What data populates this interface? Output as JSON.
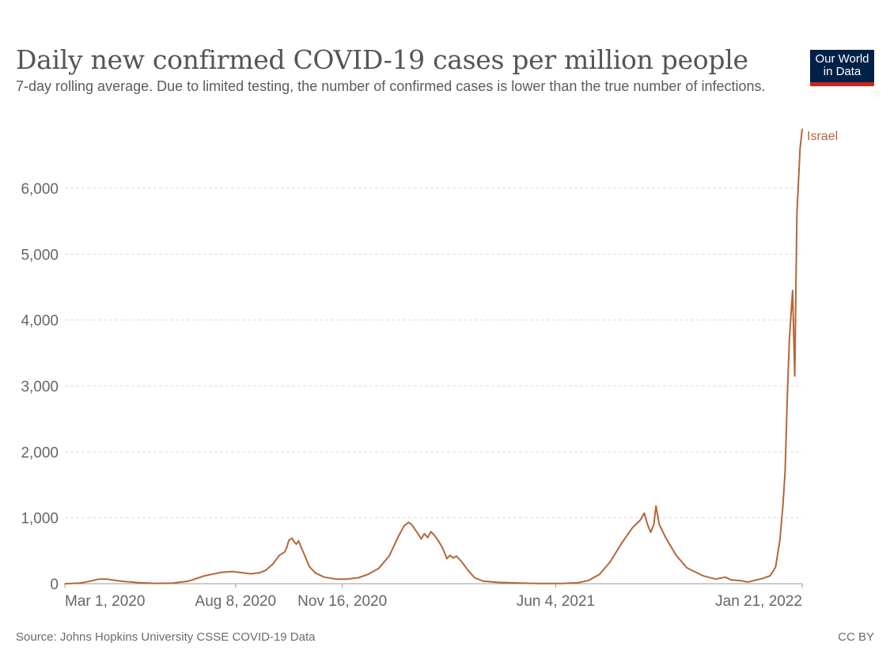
{
  "header": {
    "title": "Daily new confirmed COVID-19 cases per million people",
    "subtitle": "7-day rolling average. Due to limited testing, the number of confirmed cases is lower than the true number of infections.",
    "logo_line1": "Our World",
    "logo_line2": "in Data"
  },
  "footer": {
    "source": "Source: Johns Hopkins University CSSE COVID-19 Data",
    "license": "CC BY"
  },
  "colors": {
    "series": "#b5663a",
    "grid": "#dddddd",
    "axis_text": "#666666"
  },
  "chart_data": {
    "type": "line",
    "title": "Daily new confirmed COVID-19 cases per million people",
    "subtitle": "7-day rolling average. Due to limited testing, the number of confirmed cases is lower than the true number of infections.",
    "xlabel": "",
    "ylabel": "",
    "x_ticks": [
      "2020-03-01",
      "2020-08-08",
      "2020-11-16",
      "2021-06-04",
      "2022-01-21"
    ],
    "x_tick_labels": [
      "Mar 1, 2020",
      "Aug 8, 2020",
      "Nov 16, 2020",
      "Jun 4, 2021",
      "Jan 21, 2022"
    ],
    "xlim": [
      "2020-03-01",
      "2022-01-21"
    ],
    "y_ticks": [
      0,
      1000,
      2000,
      3000,
      4000,
      5000,
      6000
    ],
    "y_tick_labels": [
      "0",
      "1,000",
      "2,000",
      "3,000",
      "4,000",
      "5,000",
      "6,000"
    ],
    "ylim": [
      0,
      6900
    ],
    "grid": "horizontal dashed",
    "legend": "line-end label",
    "series": [
      {
        "name": "Israel",
        "color": "#b5663a",
        "points": [
          [
            "2020-03-01",
            0
          ],
          [
            "2020-03-15",
            8
          ],
          [
            "2020-03-25",
            40
          ],
          [
            "2020-04-02",
            70
          ],
          [
            "2020-04-10",
            68
          ],
          [
            "2020-04-15",
            55
          ],
          [
            "2020-04-25",
            35
          ],
          [
            "2020-05-10",
            15
          ],
          [
            "2020-05-25",
            5
          ],
          [
            "2020-06-10",
            10
          ],
          [
            "2020-06-25",
            40
          ],
          [
            "2020-07-10",
            120
          ],
          [
            "2020-07-25",
            170
          ],
          [
            "2020-08-05",
            185
          ],
          [
            "2020-08-15",
            165
          ],
          [
            "2020-08-22",
            150
          ],
          [
            "2020-08-30",
            165
          ],
          [
            "2020-09-05",
            200
          ],
          [
            "2020-09-12",
            300
          ],
          [
            "2020-09-18",
            430
          ],
          [
            "2020-09-23",
            480
          ],
          [
            "2020-09-25",
            550
          ],
          [
            "2020-09-27",
            660
          ],
          [
            "2020-09-30",
            690
          ],
          [
            "2020-10-02",
            630
          ],
          [
            "2020-10-04",
            600
          ],
          [
            "2020-10-06",
            650
          ],
          [
            "2020-10-08",
            570
          ],
          [
            "2020-10-12",
            420
          ],
          [
            "2020-10-16",
            260
          ],
          [
            "2020-10-22",
            160
          ],
          [
            "2020-10-30",
            100
          ],
          [
            "2020-11-10",
            70
          ],
          [
            "2020-11-20",
            70
          ],
          [
            "2020-12-01",
            90
          ],
          [
            "2020-12-10",
            140
          ],
          [
            "2020-12-20",
            230
          ],
          [
            "2020-12-30",
            420
          ],
          [
            "2021-01-07",
            700
          ],
          [
            "2021-01-13",
            880
          ],
          [
            "2021-01-17",
            930
          ],
          [
            "2021-01-20",
            900
          ],
          [
            "2021-01-25",
            780
          ],
          [
            "2021-01-29",
            680
          ],
          [
            "2021-02-01",
            760
          ],
          [
            "2021-02-04",
            700
          ],
          [
            "2021-02-07",
            790
          ],
          [
            "2021-02-10",
            740
          ],
          [
            "2021-02-14",
            650
          ],
          [
            "2021-02-18",
            540
          ],
          [
            "2021-02-22",
            380
          ],
          [
            "2021-02-25",
            430
          ],
          [
            "2021-02-28",
            390
          ],
          [
            "2021-03-03",
            420
          ],
          [
            "2021-03-08",
            330
          ],
          [
            "2021-03-14",
            200
          ],
          [
            "2021-03-20",
            90
          ],
          [
            "2021-03-28",
            40
          ],
          [
            "2021-04-10",
            20
          ],
          [
            "2021-05-01",
            8
          ],
          [
            "2021-05-20",
            3
          ],
          [
            "2021-06-10",
            3
          ],
          [
            "2021-06-25",
            15
          ],
          [
            "2021-07-05",
            50
          ],
          [
            "2021-07-15",
            140
          ],
          [
            "2021-07-25",
            330
          ],
          [
            "2021-08-05",
            620
          ],
          [
            "2021-08-15",
            850
          ],
          [
            "2021-08-22",
            960
          ],
          [
            "2021-08-26",
            1070
          ],
          [
            "2021-08-29",
            900
          ],
          [
            "2021-09-01",
            780
          ],
          [
            "2021-09-04",
            900
          ],
          [
            "2021-09-06",
            1180
          ],
          [
            "2021-09-09",
            900
          ],
          [
            "2021-09-15",
            700
          ],
          [
            "2021-09-25",
            430
          ],
          [
            "2021-10-05",
            240
          ],
          [
            "2021-10-20",
            120
          ],
          [
            "2021-11-01",
            70
          ],
          [
            "2021-11-10",
            100
          ],
          [
            "2021-11-15",
            60
          ],
          [
            "2021-11-25",
            45
          ],
          [
            "2021-12-01",
            25
          ],
          [
            "2021-12-05",
            40
          ],
          [
            "2021-12-15",
            80
          ],
          [
            "2021-12-22",
            120
          ],
          [
            "2021-12-27",
            250
          ],
          [
            "2021-12-31",
            650
          ],
          [
            "2022-01-03",
            1200
          ],
          [
            "2022-01-05",
            1700
          ],
          [
            "2022-01-07",
            2800
          ],
          [
            "2022-01-09",
            3700
          ],
          [
            "2022-01-11",
            4200
          ],
          [
            "2022-01-12",
            4450
          ],
          [
            "2022-01-13",
            3800
          ],
          [
            "2022-01-14",
            3150
          ],
          [
            "2022-01-16",
            5600
          ],
          [
            "2022-01-19",
            6600
          ],
          [
            "2022-01-21",
            6900
          ]
        ]
      }
    ]
  }
}
